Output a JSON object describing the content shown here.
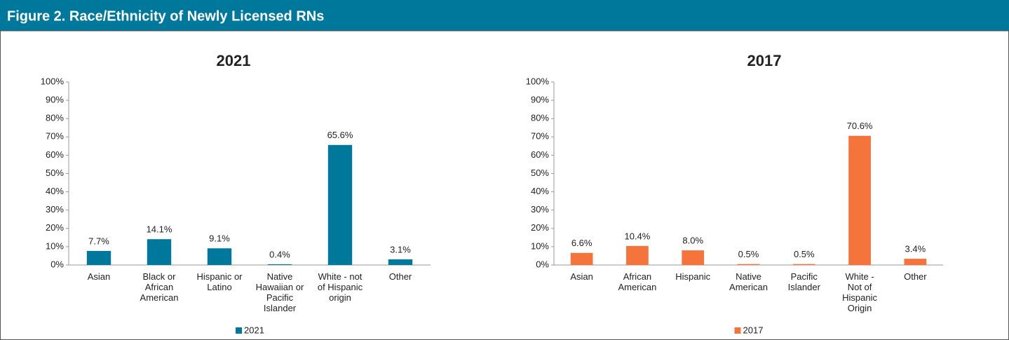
{
  "header": {
    "title": "Figure 2. Race/Ethnicity of Newly Licensed RNs"
  },
  "chart_data": [
    {
      "type": "bar",
      "title": "2021",
      "categories": [
        "Asian",
        "Black or African American",
        "Hispanic or Latino",
        "Native Hawaiian or Pacific Islander",
        "White - not of Hispanic origin",
        "Other"
      ],
      "series": [
        {
          "name": "2021",
          "color": "#00789b",
          "values": [
            7.7,
            14.1,
            9.1,
            0.4,
            65.6,
            3.1
          ],
          "value_labels": [
            "7.7%",
            "14.1%",
            "9.1%",
            "0.4%",
            "65.6%",
            "3.1%"
          ]
        }
      ],
      "ylim": [
        0,
        100
      ],
      "yticks": [
        {
          "value": 0,
          "label": "0%"
        },
        {
          "value": 10,
          "label": "10%"
        },
        {
          "value": 20,
          "label": "20%"
        },
        {
          "value": 30,
          "label": "30%"
        },
        {
          "value": 40,
          "label": "40%"
        },
        {
          "value": 50,
          "label": "50%"
        },
        {
          "value": 60,
          "label": "60%"
        },
        {
          "value": 70,
          "label": "70%"
        },
        {
          "value": 80,
          "label": "80%"
        },
        {
          "value": 90,
          "label": "90%"
        },
        {
          "value": 100,
          "label": "100%"
        }
      ],
      "grid": false,
      "legend": "bottom"
    },
    {
      "type": "bar",
      "title": "2017",
      "categories": [
        "Asian",
        "African American",
        "Hispanic",
        "Native American",
        "Pacific Islander",
        "White - Not of Hispanic Origin",
        "Other"
      ],
      "series": [
        {
          "name": "2017",
          "color": "#f4743b",
          "values": [
            6.6,
            10.4,
            8.0,
            0.5,
            0.5,
            70.6,
            3.4
          ],
          "value_labels": [
            "6.6%",
            "10.4%",
            "8.0%",
            "0.5%",
            "0.5%",
            "70.6%",
            "3.4%"
          ]
        }
      ],
      "ylim": [
        0,
        100
      ],
      "yticks": [
        {
          "value": 0,
          "label": "0%"
        },
        {
          "value": 10,
          "label": "10%"
        },
        {
          "value": 20,
          "label": "20%"
        },
        {
          "value": 30,
          "label": "30%"
        },
        {
          "value": 40,
          "label": "40%"
        },
        {
          "value": 50,
          "label": "50%"
        },
        {
          "value": 60,
          "label": "60%"
        },
        {
          "value": 70,
          "label": "70%"
        },
        {
          "value": 80,
          "label": "80%"
        },
        {
          "value": 90,
          "label": "90%"
        },
        {
          "value": 100,
          "label": "100%"
        }
      ],
      "grid": false,
      "legend": "bottom"
    }
  ]
}
